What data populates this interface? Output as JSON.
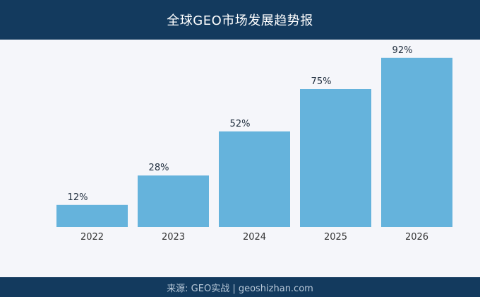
{
  "header": {
    "title": "全球GEO市场发展趋势报"
  },
  "footer": {
    "source": "来源: GEO实战 | geoshizhan.com"
  },
  "colors": {
    "header_bg": "#133a5e",
    "bar": "#65b3dc",
    "value_label": "#1f2d3d",
    "tick_label": "#333333",
    "background": "#f5f6fa"
  },
  "chart_data": {
    "type": "bar",
    "title": "全球GEO市场发展趋势报",
    "categories": [
      "2022",
      "2023",
      "2024",
      "2025",
      "2026"
    ],
    "values": [
      12,
      28,
      52,
      75,
      92
    ],
    "value_labels": [
      "12%",
      "28%",
      "52%",
      "75%",
      "92%"
    ],
    "value_unit": "%",
    "ylim": [
      0,
      100
    ],
    "xlabel": "",
    "ylabel": "",
    "grid": false,
    "legend": "none"
  }
}
